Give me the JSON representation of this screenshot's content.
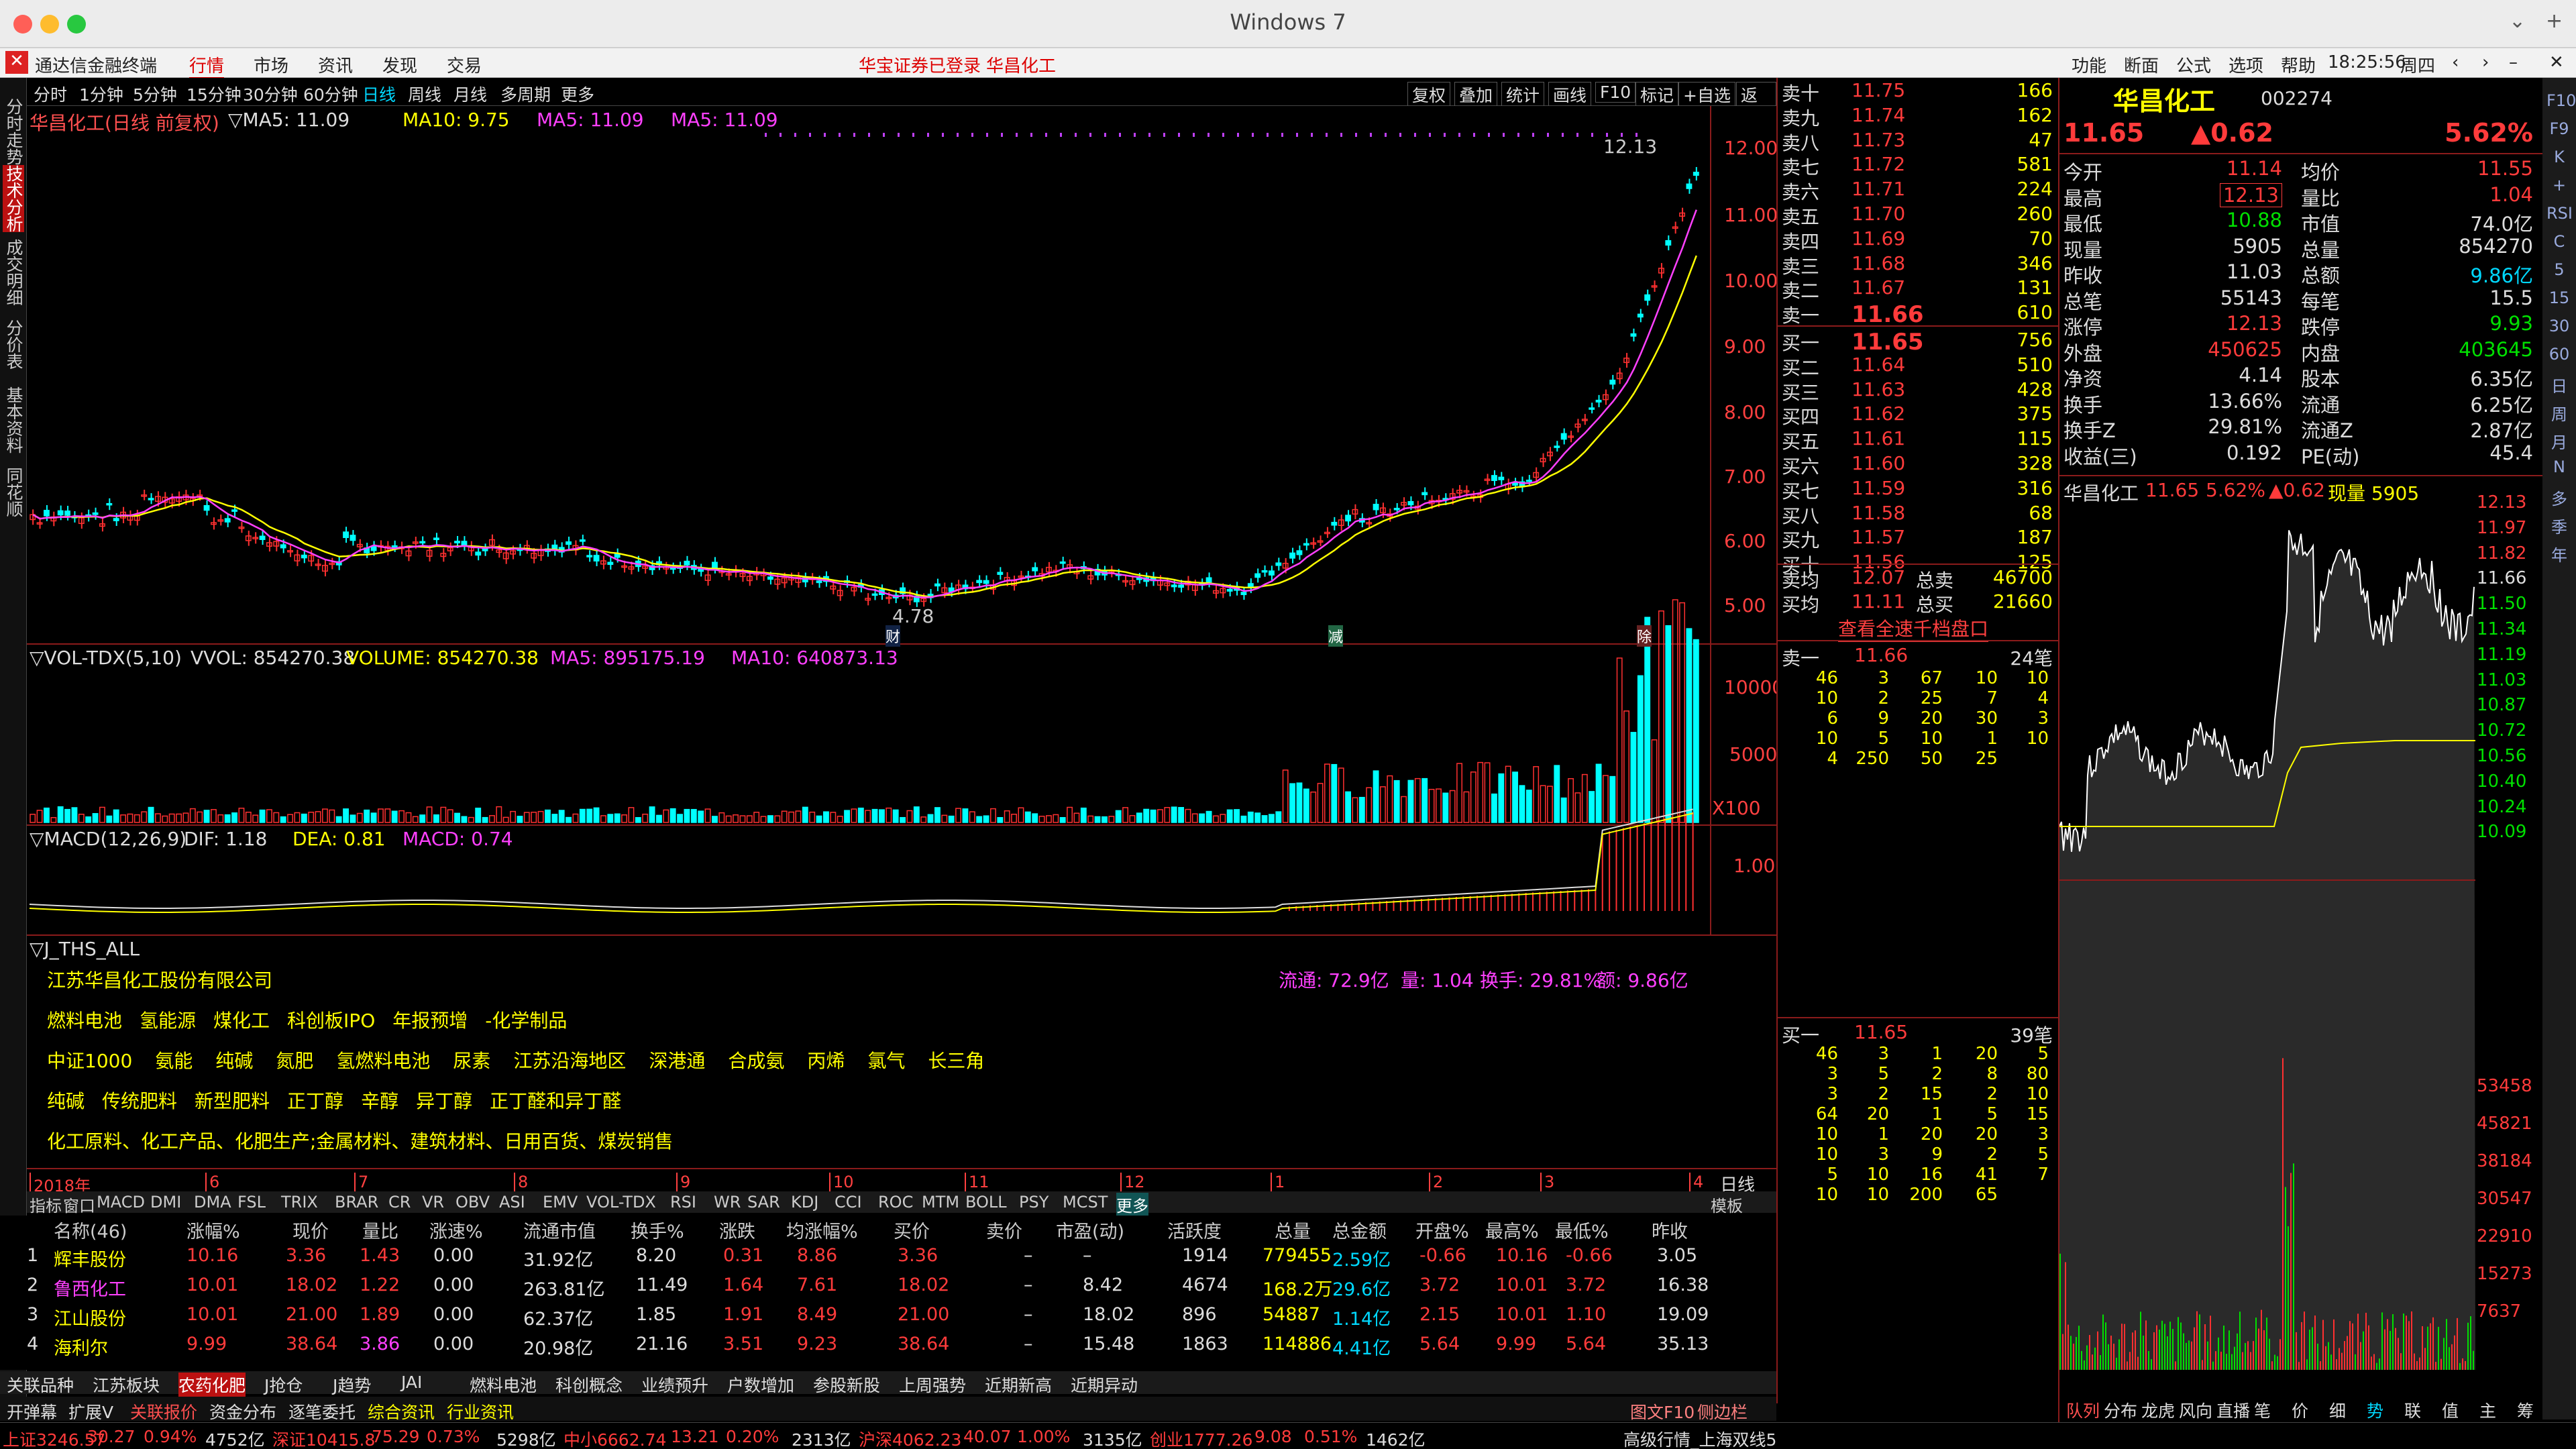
{
  "window": {
    "title": "Windows 7",
    "app_name": "通达信金融终端"
  },
  "menu": {
    "items": [
      "行情",
      "市场",
      "资讯",
      "发现",
      "交易"
    ],
    "login": "华宝证券已登录",
    "stock": "华昌化工",
    "right": [
      "功能",
      "断面",
      "公式",
      "选项",
      "帮助"
    ],
    "time": "18:25:56",
    "weekday": "周四"
  },
  "toolbar": {
    "periods": [
      "分时",
      "1分钟",
      "5分钟",
      "15分钟",
      "30分钟",
      "60分钟",
      "日线",
      "周线",
      "月线",
      "多周期",
      "更多"
    ],
    "right": [
      "复权",
      "叠加",
      "统计",
      "画线",
      "F10",
      "标记",
      "+自选",
      "返回"
    ]
  },
  "side_tabs": [
    "分时走势",
    "技术分析",
    "成交明细",
    "分价表",
    "基本资料",
    "同花顺"
  ],
  "chart": {
    "header": {
      "name": "华昌化工(日线 前复权)",
      "ma_label": "▽MA5: 11.09",
      "ma10": "MA10: 9.75",
      "ma5b": "MA5: 11.09",
      "ma5c": "MA5: 11.09"
    },
    "y_labels": [
      "12.00",
      "11.00",
      "10.00",
      "9.00",
      "8.00",
      "7.00",
      "6.00",
      "5.00"
    ],
    "high_label": "12.13",
    "low_label": "4.78",
    "markers": [
      "财",
      "减",
      "除"
    ],
    "vol_header": {
      "name": "▽VOL-TDX(5,10)",
      "vvol": "VVOL: 854270.38",
      "volume": "VOLUME: 854270.38",
      "ma5": "MA5: 895175.19",
      "ma10": "MA10: 640873.13"
    },
    "vol_y": [
      "10000",
      "5000"
    ],
    "vol_unit": "X100",
    "macd_header": {
      "name": "▽MACD(12,26,9)",
      "dif": "DIF: 1.18",
      "dea": "DEA: 0.81",
      "macd": "MACD: 0.74"
    },
    "macd_y": "1.00",
    "x_labels": [
      "2018年",
      "6",
      "7",
      "8",
      "9",
      "10",
      "11",
      "12",
      "1",
      "2",
      "3",
      "4"
    ],
    "period_tag": "日线"
  },
  "info": {
    "title": "▽J_THS_ALL",
    "company": "江苏华昌化工股份有限公司",
    "float": "流通: 72.9亿",
    "ratio": "量: 1.04",
    "turnover": "换手: 29.81%",
    "amount": "额: 9.86亿",
    "line1": [
      "燃料电池",
      "氢能源",
      "煤化工",
      "科创板IPO",
      "年报预增",
      "-化学制品"
    ],
    "line2": [
      "中证1000",
      "氨能",
      "纯碱",
      "氮肥",
      "氢燃料电池",
      "尿素",
      "江苏沿海地区",
      "深港通",
      "合成氨",
      "丙烯",
      "氯气",
      "长三角"
    ],
    "line3": [
      "纯碱",
      "传统肥料",
      "新型肥料",
      "正丁醇",
      "辛醇",
      "异丁醇",
      "正丁醛和异丁醛"
    ],
    "line4": "化工原料、化工产品、化肥生产;金属材料、建筑材料、日用百货、煤炭销售"
  },
  "indicators": [
    "指标",
    "窗口",
    "MACD",
    "DMI",
    "DMA",
    "FSL",
    "TRIX",
    "BRAR",
    "CR",
    "VR",
    "OBV",
    "ASI",
    "EMV",
    "VOL-TDX",
    "RSI",
    "WR",
    "SAR",
    "KDJ",
    "CCI",
    "ROC",
    "MTM",
    "BOLL",
    "PSY",
    "MCST",
    "更多"
  ],
  "template_label": "模板",
  "table": {
    "headers": [
      "名称(46)",
      "涨幅%",
      "现价",
      "量比",
      "涨速%",
      "流通市值",
      "换手%",
      "涨跌",
      "均涨幅%",
      "买价",
      "卖价",
      "市盈(动)",
      "活跃度",
      "总量",
      "总金额",
      "开盘%",
      "最高%",
      "最低%",
      "昨收"
    ],
    "rows": [
      [
        "1",
        "辉丰股份",
        "10.16",
        "3.36",
        "1.43",
        "0.00",
        "31.92亿",
        "8.20",
        "0.31",
        "8.86",
        "3.36",
        "–",
        "–",
        "1914",
        "779455",
        "2.59亿",
        "-0.66",
        "10.16",
        "-0.66",
        "3.05"
      ],
      [
        "2",
        "鲁西化工",
        "10.01",
        "18.02",
        "1.22",
        "0.00",
        "263.81亿",
        "11.49",
        "1.64",
        "7.61",
        "18.02",
        "–",
        "8.42",
        "4674",
        "168.2万",
        "29.6亿",
        "3.72",
        "10.01",
        "3.72",
        "16.38"
      ],
      [
        "3",
        "江山股份",
        "10.01",
        "21.00",
        "1.89",
        "0.00",
        "62.37亿",
        "1.85",
        "1.91",
        "8.49",
        "21.00",
        "–",
        "18.02",
        "896",
        "54887",
        "1.14亿",
        "2.15",
        "10.01",
        "1.10",
        "19.09"
      ],
      [
        "4",
        "海利尔",
        "9.99",
        "38.64",
        "3.86",
        "0.00",
        "20.98亿",
        "21.16",
        "3.51",
        "9.23",
        "38.64",
        "–",
        "15.48",
        "1863",
        "114886",
        "4.41亿",
        "5.64",
        "9.99",
        "5.64",
        "35.13"
      ]
    ]
  },
  "block_tabs": [
    "关联品种",
    "江苏板块",
    "农药化肥",
    "J抢仓",
    "J趋势",
    "JAI",
    "燃料电池",
    "科创概念",
    "业绩预升",
    "户数增加",
    "参股新股",
    "上周强势",
    "近期新高",
    "近期异动"
  ],
  "bottom_tabs": [
    "开弹幕",
    "扩展V",
    "关联报价",
    "资金分布",
    "逐笔委托",
    "综合资讯",
    "行业资讯"
  ],
  "status": {
    "sh": "上证3246.57",
    "sh_chg": "30.27",
    "sh_pct": "0.94%",
    "sh_amt": "4752亿",
    "sz": "深证10415.8",
    "sz_chg": "75.29",
    "sz_pct": "0.73%",
    "sz_amt": "5298亿",
    "zx": "中小6662.74",
    "zx_chg": "13.21",
    "zx_pct": "0.20%",
    "zx_amt": "2313亿",
    "hs": "沪深4062.23",
    "hs_chg": "40.07",
    "hs_pct": "1.00%",
    "hs_amt": "3135亿",
    "cy": "创业1777.26",
    "cy_chg": "9.08",
    "cy_pct": "0.51%",
    "cy_amt": "1462亿",
    "feed": "高级行情_上海双线5",
    "f10": "图文F10",
    "side": "侧边栏"
  },
  "orderbook": {
    "sells": [
      [
        "卖十",
        "11.75",
        "166"
      ],
      [
        "卖九",
        "11.74",
        "162"
      ],
      [
        "卖八",
        "11.73",
        "47"
      ],
      [
        "卖七",
        "11.72",
        "581"
      ],
      [
        "卖六",
        "11.71",
        "224"
      ],
      [
        "卖五",
        "11.70",
        "260"
      ],
      [
        "卖四",
        "11.69",
        "70"
      ],
      [
        "卖三",
        "11.68",
        "346"
      ],
      [
        "卖二",
        "11.67",
        "131"
      ],
      [
        "卖一",
        "11.66",
        "610"
      ]
    ],
    "buys": [
      [
        "买一",
        "11.65",
        "756"
      ],
      [
        "买二",
        "11.64",
        "510"
      ],
      [
        "买三",
        "11.63",
        "428"
      ],
      [
        "买四",
        "11.62",
        "375"
      ],
      [
        "买五",
        "11.61",
        "115"
      ],
      [
        "买六",
        "11.60",
        "328"
      ],
      [
        "买七",
        "11.59",
        "316"
      ],
      [
        "买八",
        "11.58",
        "68"
      ],
      [
        "买九",
        "11.57",
        "187"
      ],
      [
        "买十",
        "11.56",
        "125"
      ]
    ],
    "sell_avg": [
      "卖均",
      "12.07",
      "总卖",
      "46700"
    ],
    "buy_avg": [
      "买均",
      "11.11",
      "总买",
      "21660"
    ],
    "link": "查看全速千档盘口",
    "ask1": [
      "卖一",
      "11.66",
      "24笔"
    ],
    "ask_queue": [
      [
        "46",
        "3",
        "67",
        "10",
        "10"
      ],
      [
        "10",
        "2",
        "25",
        "7",
        "4"
      ],
      [
        "6",
        "9",
        "20",
        "30",
        "3"
      ],
      [
        "10",
        "5",
        "10",
        "1",
        "10"
      ],
      [
        "4",
        "250",
        "50",
        "25",
        ""
      ]
    ],
    "bid1": [
      "买一",
      "11.65",
      "39笔"
    ],
    "bid_queue": [
      [
        "46",
        "3",
        "1",
        "20",
        "5"
      ],
      [
        "3",
        "5",
        "2",
        "8",
        "80"
      ],
      [
        "3",
        "2",
        "15",
        "2",
        "10"
      ],
      [
        "64",
        "20",
        "1",
        "5",
        "15"
      ],
      [
        "10",
        "1",
        "20",
        "20",
        "3"
      ],
      [
        "10",
        "3",
        "9",
        "2",
        "5"
      ],
      [
        "5",
        "10",
        "16",
        "41",
        "7"
      ],
      [
        "10",
        "10",
        "200",
        "65",
        ""
      ]
    ]
  },
  "quote": {
    "name": "华昌化工",
    "code": "002274",
    "price": "11.65",
    "change": "▲0.62",
    "pct": "5.62%",
    "rows": [
      [
        "今开",
        "11.14",
        "均价",
        "11.55"
      ],
      [
        "最高",
        "12.13",
        "量比",
        "1.04"
      ],
      [
        "最低",
        "10.88",
        "市值",
        "74.0亿"
      ],
      [
        "现量",
        "5905",
        "总量",
        "854270"
      ],
      [
        "昨收",
        "11.03",
        "总额",
        "9.86亿"
      ],
      [
        "总笔",
        "55143",
        "每笔",
        "15.5"
      ],
      [
        "涨停",
        "12.13",
        "跌停",
        "9.93"
      ],
      [
        "外盘",
        "450625",
        "内盘",
        "403645"
      ],
      [
        "净资",
        "4.14",
        "股本",
        "6.35亿"
      ],
      [
        "换手",
        "13.66%",
        "流通",
        "6.25亿"
      ],
      [
        "换手Z",
        "29.81%",
        "流通Z",
        "2.87亿"
      ],
      [
        "收益(三)",
        "0.192",
        "PE(动)",
        "45.4"
      ]
    ],
    "mini_header": {
      "name": "华昌化工",
      "price": "11.65",
      "pct": "5.62%",
      "chg": "▲0.62",
      "vol": "现量 5905"
    },
    "mini_y": [
      "12.13",
      "11.97",
      "11.82",
      "11.66",
      "11.50",
      "11.34",
      "11.19",
      "11.03",
      "10.87",
      "10.72",
      "10.56",
      "10.40",
      "10.24",
      "10.09"
    ],
    "mini_vol_y": [
      "53458",
      "45821",
      "38184",
      "30547",
      "22910",
      "15273",
      "7637"
    ],
    "bottom_tabs": [
      "队列",
      "分布",
      "龙虎",
      "风向",
      "直播",
      "笔",
      "价",
      "细",
      "势",
      "联",
      "值",
      "主",
      "筹"
    ]
  },
  "right_icons": [
    "F10",
    "F9",
    "K",
    "+",
    "RSI",
    "C",
    "5",
    "15",
    "30",
    "60",
    "日",
    "周",
    "月",
    "N",
    "多",
    "季",
    "年"
  ]
}
